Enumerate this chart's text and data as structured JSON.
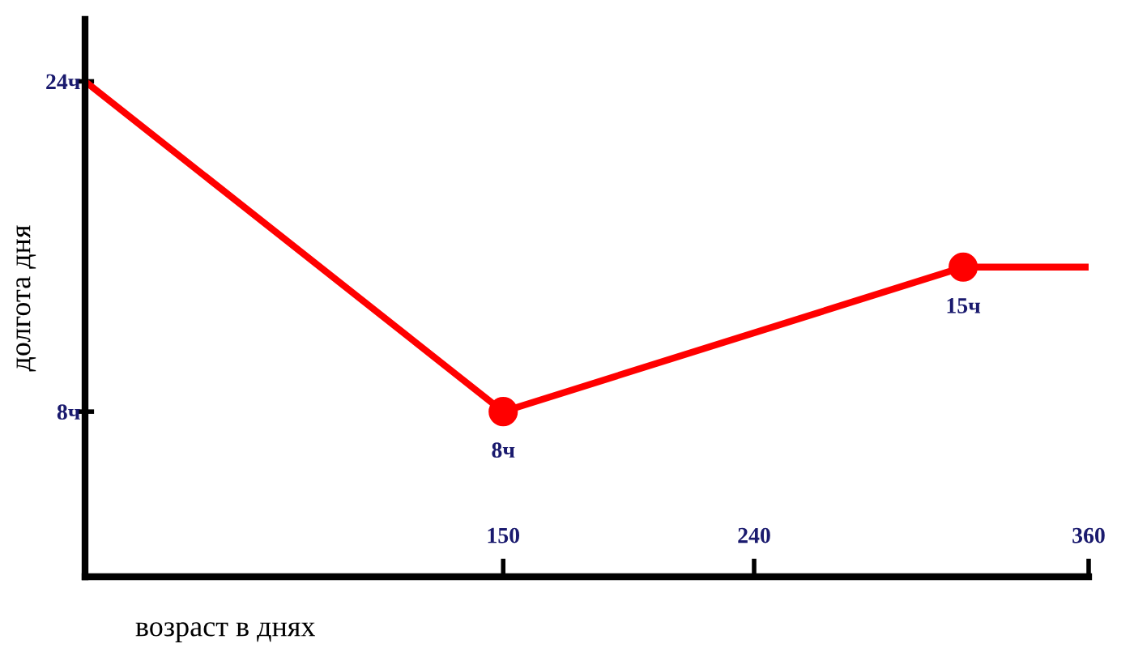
{
  "chart_data": {
    "type": "line",
    "x": [
      0,
      150,
      315,
      360
    ],
    "series": [
      {
        "color": "#ff0000",
        "values": [
          24,
          8,
          15,
          15
        ],
        "value_labels": [
          null,
          "8ч",
          "15ч",
          null
        ]
      }
    ],
    "xlabel": "возраст в днях",
    "ylabel": "долгота дня",
    "xlim": [
      0,
      360
    ],
    "xticks": [
      150,
      240,
      360
    ],
    "ylim": [
      0,
      27
    ],
    "yticks": [
      {
        "value": 24,
        "label": "24ч"
      },
      {
        "value": 8,
        "label": "8ч"
      }
    ],
    "marker": "circle",
    "grid": false
  }
}
